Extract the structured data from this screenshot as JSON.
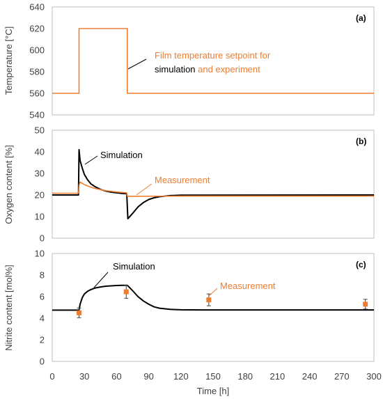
{
  "colors": {
    "orange": "#ed7d31",
    "black": "#000000",
    "grid_text": "#404040",
    "axis": "#bfbfbf"
  },
  "x_axis": {
    "label": "Time [h]",
    "ticks": [
      0,
      30,
      60,
      90,
      120,
      150,
      180,
      210,
      240,
      270,
      300
    ],
    "range": [
      0,
      300
    ]
  },
  "chart_data": [
    {
      "type": "line",
      "panel": "(a)",
      "ylabel": "Temperature [°C]",
      "ylim": [
        540,
        640
      ],
      "yticks": [
        540,
        560,
        580,
        600,
        620,
        640
      ],
      "series": [
        {
          "name": "Film temperature setpoint for simulation and experiment",
          "color": "#ed7d31",
          "x": [
            0,
            25,
            25,
            70,
            70,
            300
          ],
          "y": [
            560,
            560,
            620,
            620,
            560,
            560
          ]
        }
      ],
      "annotations": [
        {
          "parts": [
            {
              "text": "Film temperature setpoint for",
              "color": "#ed7d31"
            }
          ]
        },
        {
          "parts": [
            {
              "text": "simulation",
              "color": "#000000"
            },
            {
              "text": " and experiment",
              "color": "#ed7d31"
            }
          ]
        }
      ]
    },
    {
      "type": "line",
      "panel": "(b)",
      "ylabel": "Oxygen content [%]",
      "ylim": [
        0,
        50
      ],
      "yticks": [
        0,
        10,
        20,
        30,
        40,
        50
      ],
      "series": [
        {
          "name": "Simulation",
          "color": "#000000",
          "x": [
            0,
            24.5,
            25,
            26,
            28,
            30,
            33,
            36,
            40,
            45,
            50,
            55,
            60,
            65,
            69.5,
            70,
            70.5,
            75,
            80,
            85,
            90,
            95,
            100,
            110,
            120,
            300
          ],
          "y": [
            20,
            20,
            41,
            36,
            32.5,
            29.5,
            27,
            25.2,
            23.8,
            22.6,
            21.8,
            21.3,
            21,
            20.7,
            20.6,
            15,
            9,
            11.5,
            14.5,
            16.5,
            17.9,
            18.7,
            19.2,
            19.7,
            19.9,
            20
          ]
        },
        {
          "name": "Measurement",
          "color": "#ed7d31",
          "x": [
            0,
            24.5,
            25,
            26,
            30,
            35,
            40,
            50,
            60,
            69.5,
            70,
            72,
            120,
            300
          ],
          "y": [
            20.8,
            20.8,
            24.5,
            26,
            24.8,
            23.8,
            23,
            22,
            21.4,
            21,
            19.5,
            19.4,
            19.5,
            19.5
          ]
        }
      ],
      "annotations": [
        {
          "text": "Simulation",
          "color": "#000000"
        },
        {
          "text": "Measurement",
          "color": "#ed7d31"
        }
      ]
    },
    {
      "type": "line",
      "panel": "(c)",
      "ylabel": "Nitrite content [mol%]",
      "ylim": [
        0,
        10
      ],
      "yticks": [
        0,
        2,
        4,
        6,
        8,
        10
      ],
      "series": [
        {
          "name": "Simulation",
          "color": "#000000",
          "x": [
            0,
            25,
            26,
            28,
            30,
            33,
            36,
            40,
            45,
            50,
            55,
            60,
            65,
            70,
            72,
            75,
            80,
            85,
            90,
            95,
            100,
            110,
            120,
            140,
            300
          ],
          "y": [
            4.75,
            4.75,
            5.3,
            5.9,
            6.25,
            6.5,
            6.65,
            6.8,
            6.9,
            6.97,
            7.0,
            7.03,
            7.05,
            7.05,
            6.85,
            6.55,
            6.0,
            5.6,
            5.3,
            5.05,
            4.93,
            4.82,
            4.78,
            4.77,
            4.77
          ]
        },
        {
          "name": "Measurement",
          "color": "#ed7d31",
          "points": [
            {
              "x": 25,
              "y": 4.5,
              "err": 0.45
            },
            {
              "x": 69,
              "y": 6.45,
              "err": 0.6
            },
            {
              "x": 146,
              "y": 5.7,
              "err": 0.55
            },
            {
              "x": 292,
              "y": 5.3,
              "err": 0.45
            }
          ]
        }
      ],
      "annotations": [
        {
          "text": "Simulation",
          "color": "#000000"
        },
        {
          "text": "Measurement",
          "color": "#ed7d31"
        }
      ]
    }
  ]
}
